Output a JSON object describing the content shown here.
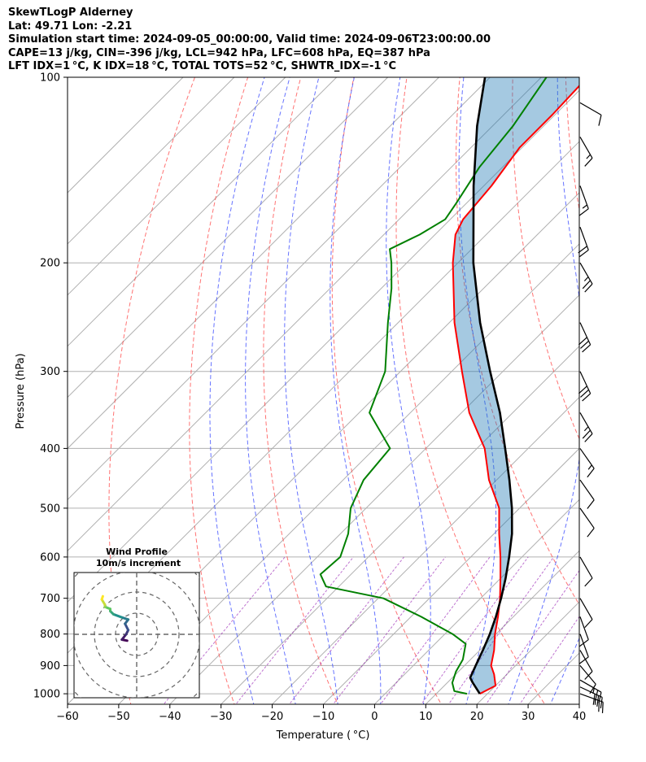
{
  "header": {
    "title": "SkewTLogP Alderney",
    "location": "Lat: 49.71   Lon: -2.21",
    "times": "Simulation start time: 2024-09-05_00:00:00, Valid time: 2024-09-06T23:00:00.00",
    "params": "CAPE=13 j/kg, CIN=-396 j/kg, LCL=942 hPa, LFC=608 hPa, EQ=387 hPa",
    "indices": "LFT IDX=1 °C, K IDX=18 °C, TOTAL TOTS=52 °C, SHWTR_IDX=-1 °C"
  },
  "chart_data": {
    "type": "skewt-logp",
    "title": "SkewTLogP Alderney",
    "xlabel": "Temperature ( °C)",
    "ylabel": "Pressure (hPa)",
    "xlim": [
      -60,
      40
    ],
    "ylim": [
      1040,
      100
    ],
    "x_ticks": [
      -60,
      -50,
      -40,
      -30,
      -20,
      -10,
      0,
      10,
      20,
      30,
      40
    ],
    "x_tick_labels": [
      "−60",
      "−50",
      "−40",
      "−30",
      "−20",
      "−10",
      "0",
      "10",
      "20",
      "30",
      "40"
    ],
    "y_ticks": [
      1000,
      900,
      800,
      700,
      600,
      500,
      400,
      300,
      200,
      100
    ],
    "y_tick_labels": [
      "1000",
      "900",
      "800",
      "700",
      "600",
      "500",
      "400",
      "300",
      "200",
      "100"
    ],
    "temperature": {
      "name": "Temperature",
      "color": "#ff0000",
      "points": [
        [
          1000,
          18.5
        ],
        [
          970,
          20
        ],
        [
          930,
          17.5
        ],
        [
          900,
          15.2
        ],
        [
          850,
          12.8
        ],
        [
          800,
          9.8
        ],
        [
          750,
          7.0
        ],
        [
          700,
          3.8
        ],
        [
          650,
          0.0
        ],
        [
          600,
          -4.2
        ],
        [
          550,
          -9.0
        ],
        [
          500,
          -14.0
        ],
        [
          450,
          -21.5
        ],
        [
          400,
          -28.5
        ],
        [
          350,
          -38.5
        ],
        [
          300,
          -48.0
        ],
        [
          250,
          -59.0
        ],
        [
          200,
          -71.0
        ],
        [
          180,
          -76.0
        ],
        [
          170,
          -77.5
        ],
        [
          150,
          -78.5
        ],
        [
          130,
          -80.5
        ],
        [
          115,
          -80.5
        ],
        [
          100,
          -81.0
        ]
      ]
    },
    "dewpoint": {
      "name": "Dewpoint",
      "color": "#008000",
      "points": [
        [
          1000,
          16.0
        ],
        [
          990,
          13.0
        ],
        [
          960,
          11.0
        ],
        [
          920,
          9.5
        ],
        [
          880,
          8.5
        ],
        [
          830,
          6.0
        ],
        [
          800,
          1.5
        ],
        [
          750,
          -8.0
        ],
        [
          700,
          -19.0
        ],
        [
          670,
          -32.5
        ],
        [
          640,
          -36.0
        ],
        [
          600,
          -35.5
        ],
        [
          550,
          -38.5
        ],
        [
          500,
          -43.0
        ],
        [
          450,
          -46.0
        ],
        [
          400,
          -47.0
        ],
        [
          350,
          -58.0
        ],
        [
          300,
          -63.0
        ],
        [
          250,
          -72.0
        ],
        [
          220,
          -78.0
        ],
        [
          200,
          -83.0
        ],
        [
          190,
          -86.0
        ],
        [
          180,
          -83.0
        ],
        [
          170,
          -81.0
        ],
        [
          160,
          -82.0
        ],
        [
          140,
          -84.5
        ],
        [
          120,
          -86.0
        ],
        [
          100,
          -89.0
        ]
      ]
    },
    "parcel": {
      "name": "Parcel path",
      "color": "#000000",
      "points": [
        [
          1000,
          18.5
        ],
        [
          960,
          15.0
        ],
        [
          942,
          13.5
        ],
        [
          900,
          12.2
        ],
        [
          850,
          10.6
        ],
        [
          800,
          8.8
        ],
        [
          750,
          6.6
        ],
        [
          700,
          4.0
        ],
        [
          650,
          1.0
        ],
        [
          600,
          -2.5
        ],
        [
          550,
          -6.5
        ],
        [
          500,
          -11.5
        ],
        [
          450,
          -17.5
        ],
        [
          400,
          -24.5
        ],
        [
          350,
          -32.5
        ],
        [
          300,
          -42.5
        ],
        [
          250,
          -54.0
        ],
        [
          200,
          -67.0
        ],
        [
          150,
          -82.0
        ],
        [
          120,
          -93.0
        ],
        [
          100,
          -101.0
        ]
      ]
    },
    "wind_barbs": [
      {
        "pressure": 1000,
        "speed_kt": 25,
        "dir_deg": 110
      },
      {
        "pressure": 975,
        "speed_kt": 30,
        "dir_deg": 115
      },
      {
        "pressure": 950,
        "speed_kt": 25,
        "dir_deg": 120
      },
      {
        "pressure": 900,
        "speed_kt": 10,
        "dir_deg": 140
      },
      {
        "pressure": 850,
        "speed_kt": 10,
        "dir_deg": 150
      },
      {
        "pressure": 800,
        "speed_kt": 10,
        "dir_deg": 160
      },
      {
        "pressure": 750,
        "speed_kt": 10,
        "dir_deg": 160
      },
      {
        "pressure": 700,
        "speed_kt": 10,
        "dir_deg": 150
      },
      {
        "pressure": 600,
        "speed_kt": 10,
        "dir_deg": 150
      },
      {
        "pressure": 500,
        "speed_kt": 10,
        "dir_deg": 145
      },
      {
        "pressure": 450,
        "speed_kt": 10,
        "dir_deg": 145
      },
      {
        "pressure": 400,
        "speed_kt": 15,
        "dir_deg": 145
      },
      {
        "pressure": 350,
        "speed_kt": 25,
        "dir_deg": 150
      },
      {
        "pressure": 300,
        "speed_kt": 30,
        "dir_deg": 155
      },
      {
        "pressure": 250,
        "speed_kt": 30,
        "dir_deg": 155
      },
      {
        "pressure": 200,
        "speed_kt": 25,
        "dir_deg": 150
      },
      {
        "pressure": 175,
        "speed_kt": 20,
        "dir_deg": 160
      },
      {
        "pressure": 150,
        "speed_kt": 15,
        "dir_deg": 160
      },
      {
        "pressure": 125,
        "speed_kt": 15,
        "dir_deg": 150
      },
      {
        "pressure": 110,
        "speed_kt": 10,
        "dir_deg": 120
      }
    ],
    "hodograph": {
      "title": "Wind Profile",
      "subtitle": "10m/s increment",
      "rings_ms": [
        10,
        20,
        30,
        40,
        50
      ],
      "points_uv": [
        [
          -4.5,
          -3
        ],
        [
          -7,
          -2.5
        ],
        [
          -5,
          0
        ],
        [
          -4,
          2
        ],
        [
          -5.5,
          5
        ],
        [
          -4,
          7
        ],
        [
          -7,
          8
        ],
        [
          -11,
          9.5
        ],
        [
          -12.5,
          11
        ],
        [
          -12.5,
          12
        ],
        [
          -15,
          13
        ],
        [
          -15,
          14
        ],
        [
          -16.5,
          16.5
        ],
        [
          -16,
          18
        ]
      ]
    }
  }
}
